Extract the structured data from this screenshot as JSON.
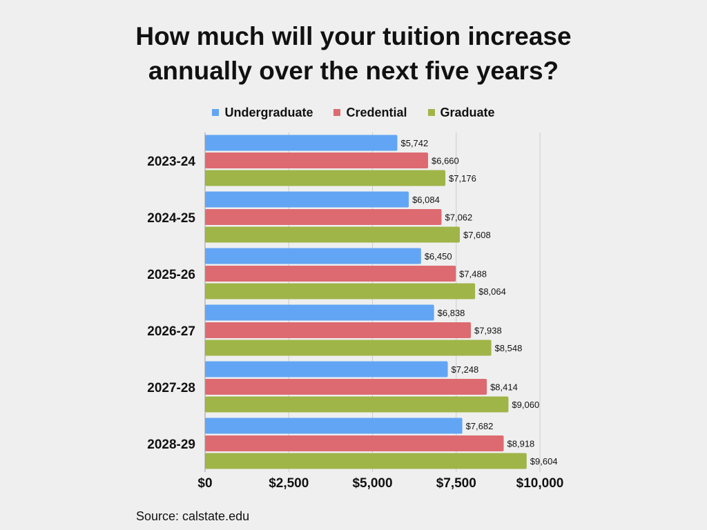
{
  "title_lines": [
    "How much will your tuition increase",
    "annually over the next five years?"
  ],
  "source": "Source: calstate.edu",
  "colors": {
    "undergraduate": "#63a5f5",
    "credential": "#dd6a70",
    "graduate": "#9fb548",
    "grid": "#cccccc",
    "text": "#111111"
  },
  "chart_data": {
    "type": "bar",
    "orientation": "horizontal",
    "title": "How much will your tuition increase annually over the next five years?",
    "categories": [
      "2023-24",
      "2024-25",
      "2025-26",
      "2026-27",
      "2027-28",
      "2028-29"
    ],
    "series": [
      {
        "name": "Undergraduate",
        "color": "#63a5f5",
        "values": [
          5742,
          6084,
          6450,
          6838,
          7248,
          7682
        ],
        "labels": [
          "$5,742",
          "$6,084",
          "$6,450",
          "$6,838",
          "$7,248",
          "$7,682"
        ]
      },
      {
        "name": "Credential",
        "color": "#dd6a70",
        "values": [
          6660,
          7062,
          7488,
          7938,
          8414,
          8918
        ],
        "labels": [
          "$6,660",
          "$7,062",
          "$7,488",
          "$7,938",
          "$8,414",
          "$8,918"
        ]
      },
      {
        "name": "Graduate",
        "color": "#9fb548",
        "values": [
          7176,
          7608,
          8064,
          8548,
          9060,
          9604
        ],
        "labels": [
          "$7,176",
          "$7,608",
          "$8,064",
          "$8,548",
          "$9,060",
          "$9,604"
        ]
      }
    ],
    "xlim": [
      0,
      10000
    ],
    "xticks": [
      0,
      2500,
      5000,
      7500,
      10000
    ],
    "xtick_labels": [
      "$0",
      "$2,500",
      "$5,000",
      "$7,500",
      "$10,000"
    ],
    "legend_position": "top",
    "grid": true
  }
}
